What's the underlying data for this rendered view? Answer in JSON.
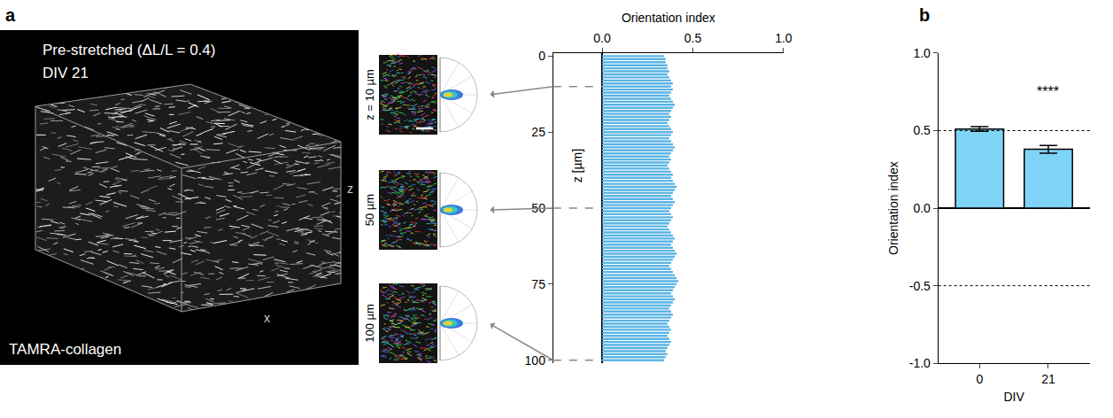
{
  "panel_labels": [
    "a",
    "b"
  ],
  "image": {
    "title_lines": [
      "Pre-stretched (ΔL/L = 0.4)",
      "DIV 21"
    ],
    "stain": "TAMRA-collagen",
    "axis_labels": [
      "z",
      "x"
    ],
    "insets": [
      {
        "label": "z = 10 µm",
        "z": 10
      },
      {
        "label": "50 µm",
        "z": 50
      },
      {
        "label": "100 µm",
        "z": 100
      }
    ]
  },
  "chart_data": [
    {
      "type": "bar",
      "orientation": "horizontal",
      "x_label": "Orientation index",
      "y_label": "z [µm]",
      "y": [
        0,
        1,
        2,
        3,
        4,
        5,
        6,
        7,
        8,
        9,
        10,
        11,
        12,
        13,
        14,
        15,
        16,
        17,
        18,
        19,
        20,
        21,
        22,
        23,
        24,
        25,
        26,
        27,
        28,
        29,
        30,
        31,
        32,
        33,
        34,
        35,
        36,
        37,
        38,
        39,
        40,
        41,
        42,
        43,
        44,
        45,
        46,
        47,
        48,
        49,
        50,
        51,
        52,
        53,
        54,
        55,
        56,
        57,
        58,
        59,
        60,
        61,
        62,
        63,
        64,
        65,
        66,
        67,
        68,
        69,
        70,
        71,
        72,
        73,
        74,
        75,
        76,
        77,
        78,
        79,
        80,
        81,
        82,
        83,
        84,
        85,
        86,
        87,
        88,
        89,
        90,
        91,
        92,
        93,
        94,
        95,
        96,
        97,
        98,
        99,
        100
      ],
      "values": [
        0.34,
        0.35,
        0.35,
        0.36,
        0.36,
        0.37,
        0.36,
        0.37,
        0.38,
        0.39,
        0.38,
        0.39,
        0.38,
        0.37,
        0.38,
        0.39,
        0.4,
        0.39,
        0.38,
        0.37,
        0.38,
        0.37,
        0.36,
        0.37,
        0.38,
        0.39,
        0.38,
        0.37,
        0.38,
        0.39,
        0.4,
        0.39,
        0.38,
        0.37,
        0.38,
        0.37,
        0.36,
        0.37,
        0.38,
        0.39,
        0.38,
        0.39,
        0.4,
        0.41,
        0.4,
        0.39,
        0.38,
        0.39,
        0.4,
        0.39,
        0.38,
        0.37,
        0.38,
        0.39,
        0.38,
        0.37,
        0.36,
        0.37,
        0.38,
        0.39,
        0.4,
        0.39,
        0.38,
        0.39,
        0.4,
        0.41,
        0.4,
        0.39,
        0.38,
        0.37,
        0.38,
        0.39,
        0.4,
        0.41,
        0.42,
        0.41,
        0.4,
        0.39,
        0.38,
        0.39,
        0.4,
        0.39,
        0.38,
        0.37,
        0.38,
        0.39,
        0.38,
        0.37,
        0.36,
        0.37,
        0.38,
        0.37,
        0.36,
        0.37,
        0.38,
        0.37,
        0.36,
        0.35,
        0.36,
        0.35,
        0.34
      ],
      "color": "#5ab4e5",
      "xlim": [
        -0.27,
        1.0
      ],
      "xticks": [
        {
          "value": 0,
          "label": "0.0"
        },
        0.5,
        {
          "value": 1,
          "label": "1.0"
        }
      ],
      "ylim": [
        101,
        -1
      ],
      "yticks": [
        0,
        25,
        50,
        75,
        100
      ],
      "grid": false
    },
    {
      "type": "bar",
      "x_label": "DIV",
      "y_label": "Orientation index",
      "categories": [
        "0",
        "21"
      ],
      "values": [
        0.51,
        0.38
      ],
      "errors": [
        0.015,
        0.025
      ],
      "color": "#7fd3f7",
      "ylim": [
        -1,
        1
      ],
      "yticks": [
        {
          "value": -1,
          "label": "-1.0"
        },
        -0.5,
        {
          "value": 0,
          "label": "0.0"
        },
        0.5,
        {
          "value": 1,
          "label": "1.0"
        }
      ],
      "reference_lines": [
        0.5,
        -0.5
      ],
      "annotations": [
        {
          "text": "****",
          "x": "21",
          "y": 0.75
        }
      ],
      "grid": false
    }
  ]
}
